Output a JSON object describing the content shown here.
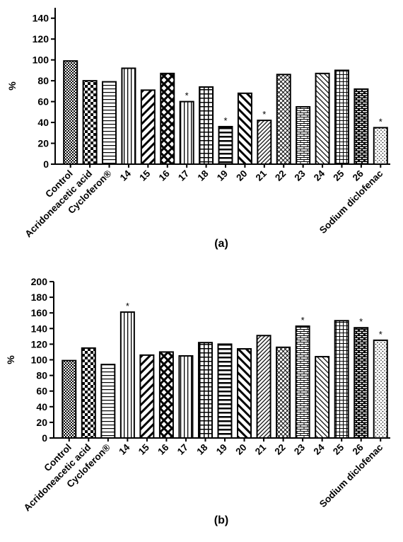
{
  "chart_data": [
    {
      "type": "bar",
      "panel_label": "(a)",
      "y_label": "%",
      "categories": [
        "Control",
        "Acridoneacetic acid",
        "Cycloferon®",
        "14",
        "15",
        "16",
        "17",
        "18",
        "19",
        "20",
        "21",
        "22",
        "23",
        "24",
        "25",
        "26",
        "Sodium diclofenac"
      ],
      "values": [
        99,
        80,
        79,
        92,
        71,
        87,
        60,
        74,
        36,
        68,
        42,
        86,
        55,
        87,
        90,
        72,
        35
      ],
      "annotations": [
        null,
        null,
        null,
        null,
        null,
        null,
        "*",
        null,
        "*",
        null,
        "*",
        null,
        null,
        null,
        null,
        null,
        "*"
      ],
      "patterns": [
        "checker-fine",
        "checker",
        "hlines",
        "vlines",
        "diag-down",
        "diamond",
        "vlines",
        "grid",
        "hlines-bold",
        "diag-up",
        "diag-down-fine",
        "weave",
        "brick",
        "diag-up-fine",
        "grid-fine",
        "brick-dark",
        "dots"
      ],
      "ylim": [
        0,
        150
      ],
      "yticks": [
        0,
        20,
        40,
        60,
        80,
        100,
        120,
        140
      ]
    },
    {
      "type": "bar",
      "panel_label": "(b)",
      "y_label": "%",
      "categories": [
        "Control",
        "Acridoneacetic acid",
        "Cycloferon®",
        "14",
        "15",
        "16",
        "17",
        "18",
        "19",
        "20",
        "21",
        "22",
        "23",
        "24",
        "25",
        "26",
        "Sodium diclofenac"
      ],
      "values": [
        99,
        115,
        94,
        161,
        106,
        110,
        105,
        122,
        120,
        114,
        131,
        116,
        143,
        104,
        150,
        141,
        125
      ],
      "annotations": [
        null,
        null,
        null,
        "*",
        null,
        null,
        null,
        null,
        null,
        null,
        null,
        null,
        "*",
        null,
        null,
        "*",
        "*"
      ],
      "patterns": [
        "checker-fine",
        "checker",
        "hlines",
        "vlines",
        "diag-down",
        "diamond",
        "vlines",
        "grid",
        "hlines-bold",
        "diag-up",
        "diag-down-fine",
        "weave",
        "brick",
        "diag-up-fine",
        "grid-fine",
        "brick-dark",
        "dots"
      ],
      "ylim": [
        0,
        200
      ],
      "yticks": [
        0,
        20,
        40,
        60,
        80,
        100,
        120,
        140,
        160,
        180,
        200
      ]
    }
  ]
}
